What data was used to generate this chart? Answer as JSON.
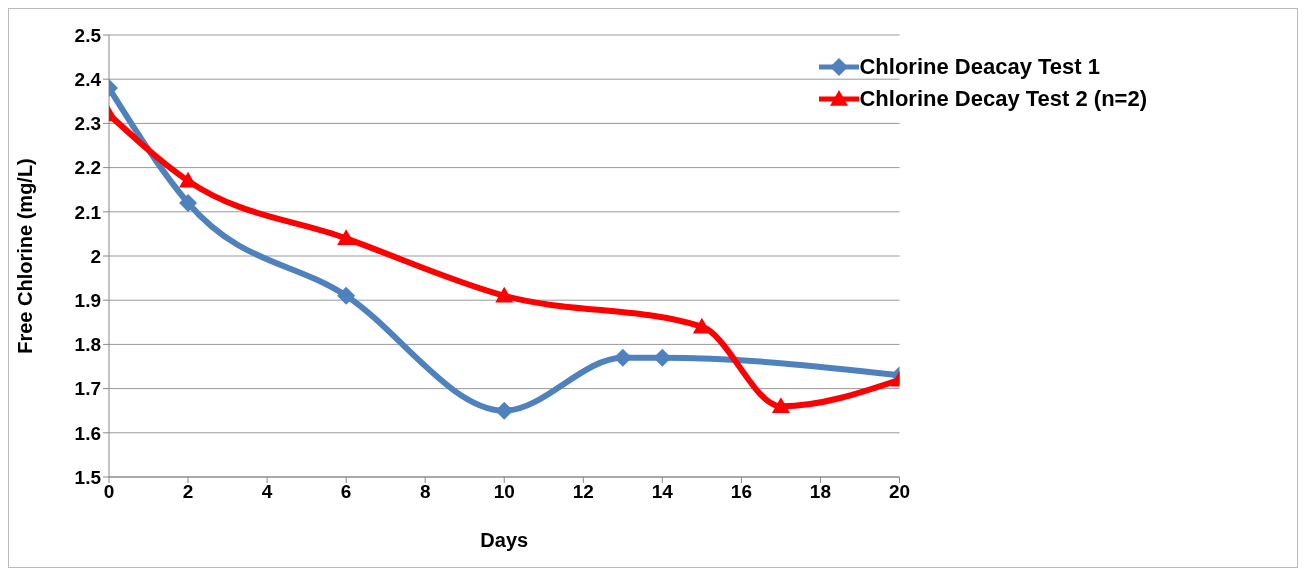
{
  "chart_data": {
    "type": "line",
    "xlabel": "Days",
    "ylabel": "Free Chlorine  (mg/L)",
    "xlim": [
      0,
      20
    ],
    "xticks": [
      0,
      2,
      4,
      6,
      8,
      10,
      12,
      14,
      16,
      18,
      20
    ],
    "ylim": [
      1.5,
      2.5
    ],
    "yticks": [
      1.5,
      1.6,
      1.7,
      1.8,
      1.9,
      2,
      2.1,
      2.2,
      2.3,
      2.4,
      2.5
    ],
    "grid": "y",
    "legend": "top right",
    "line_style": "solid",
    "series": [
      {
        "name": "Chlorine Deacay Test 1",
        "color": "#4f81bd",
        "marker": "diamond",
        "x": [
          0,
          2,
          6,
          10,
          13,
          14,
          20
        ],
        "values": [
          2.38,
          2.12,
          1.91,
          1.65,
          1.77,
          1.77,
          1.73
        ]
      },
      {
        "name": "Chlorine Decay Test 2 (n=2)",
        "color": "#ff0000",
        "marker": "triangle",
        "x": [
          0,
          2,
          6,
          10,
          15,
          17,
          20
        ],
        "values": [
          2.32,
          2.17,
          2.04,
          1.91,
          1.84,
          1.66,
          1.72
        ]
      }
    ]
  }
}
